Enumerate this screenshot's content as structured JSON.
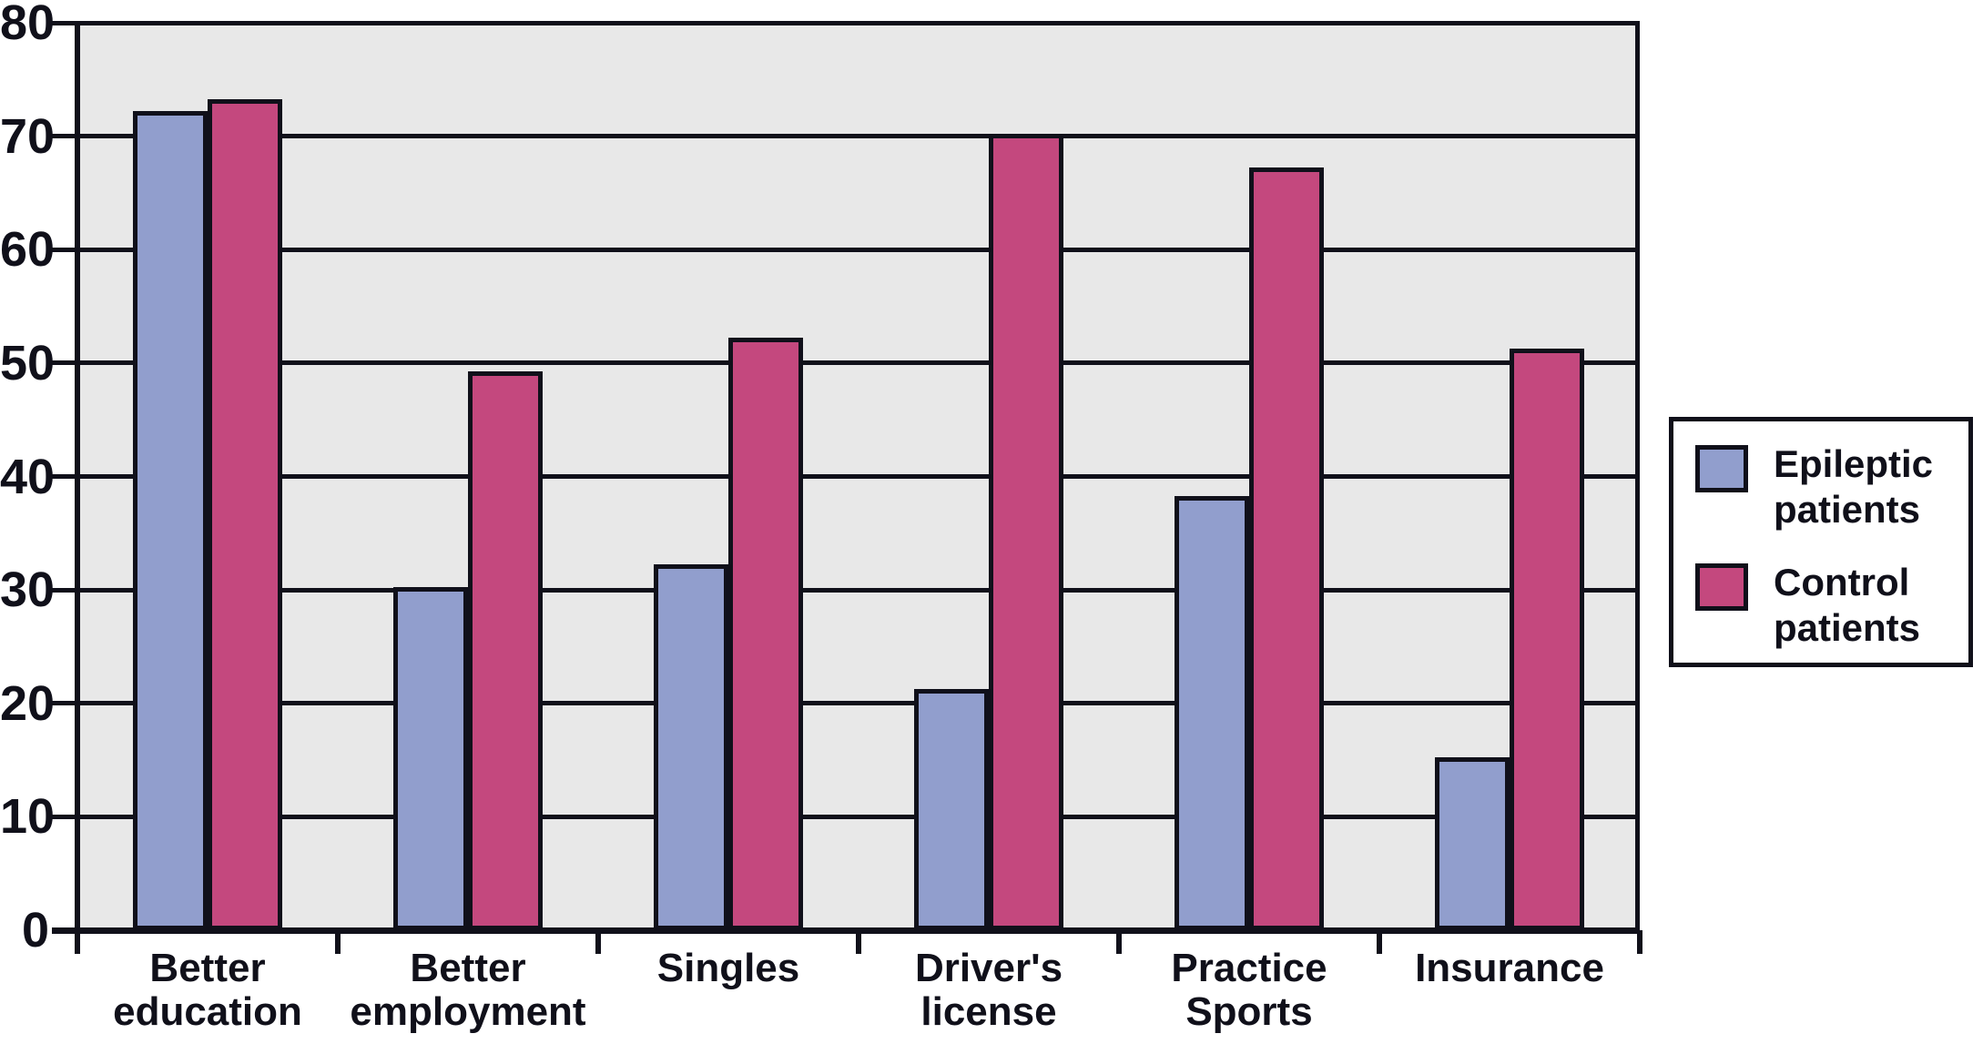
{
  "colors": {
    "line": "#10101a",
    "plot_background": "#e8e8e8",
    "outer_background": "#ffffff",
    "epileptic_blue": "#919ECD",
    "control_pink": "#C4487E",
    "legend_background": "#ffffff"
  },
  "y_axis": {
    "tick_labels": [
      "0",
      "10",
      "20",
      "30",
      "40",
      "50",
      "60",
      "70",
      "80"
    ]
  },
  "legend": {
    "items": [
      {
        "label_lines": [
          "Epileptic",
          "patients"
        ],
        "color": "#919ECD"
      },
      {
        "label_lines": [
          "Control",
          "patients"
        ],
        "color": "#C4487E"
      }
    ]
  },
  "chart_data": {
    "type": "bar",
    "categories": [
      "Better education",
      "Better employment",
      "Singles",
      "Driver's license",
      "Practice Sports",
      "Insurance"
    ],
    "category_label_lines": [
      [
        "Better",
        "education"
      ],
      [
        "Better",
        "employment"
      ],
      [
        "Singles"
      ],
      [
        "Driver's",
        "license"
      ],
      [
        "Practice",
        "Sports"
      ],
      [
        "Insurance"
      ]
    ],
    "series": [
      {
        "name": "Epileptic patients",
        "color": "#919ECD",
        "values": [
          72,
          30,
          32,
          21,
          38,
          15
        ]
      },
      {
        "name": "Control patients",
        "color": "#C4487E",
        "values": [
          73,
          49,
          52,
          70,
          67,
          51
        ]
      }
    ],
    "title": "",
    "xlabel": "",
    "ylabel": "",
    "ylim": [
      0,
      80
    ],
    "ytick_step": 10,
    "grid": true,
    "legend_position": "right"
  }
}
